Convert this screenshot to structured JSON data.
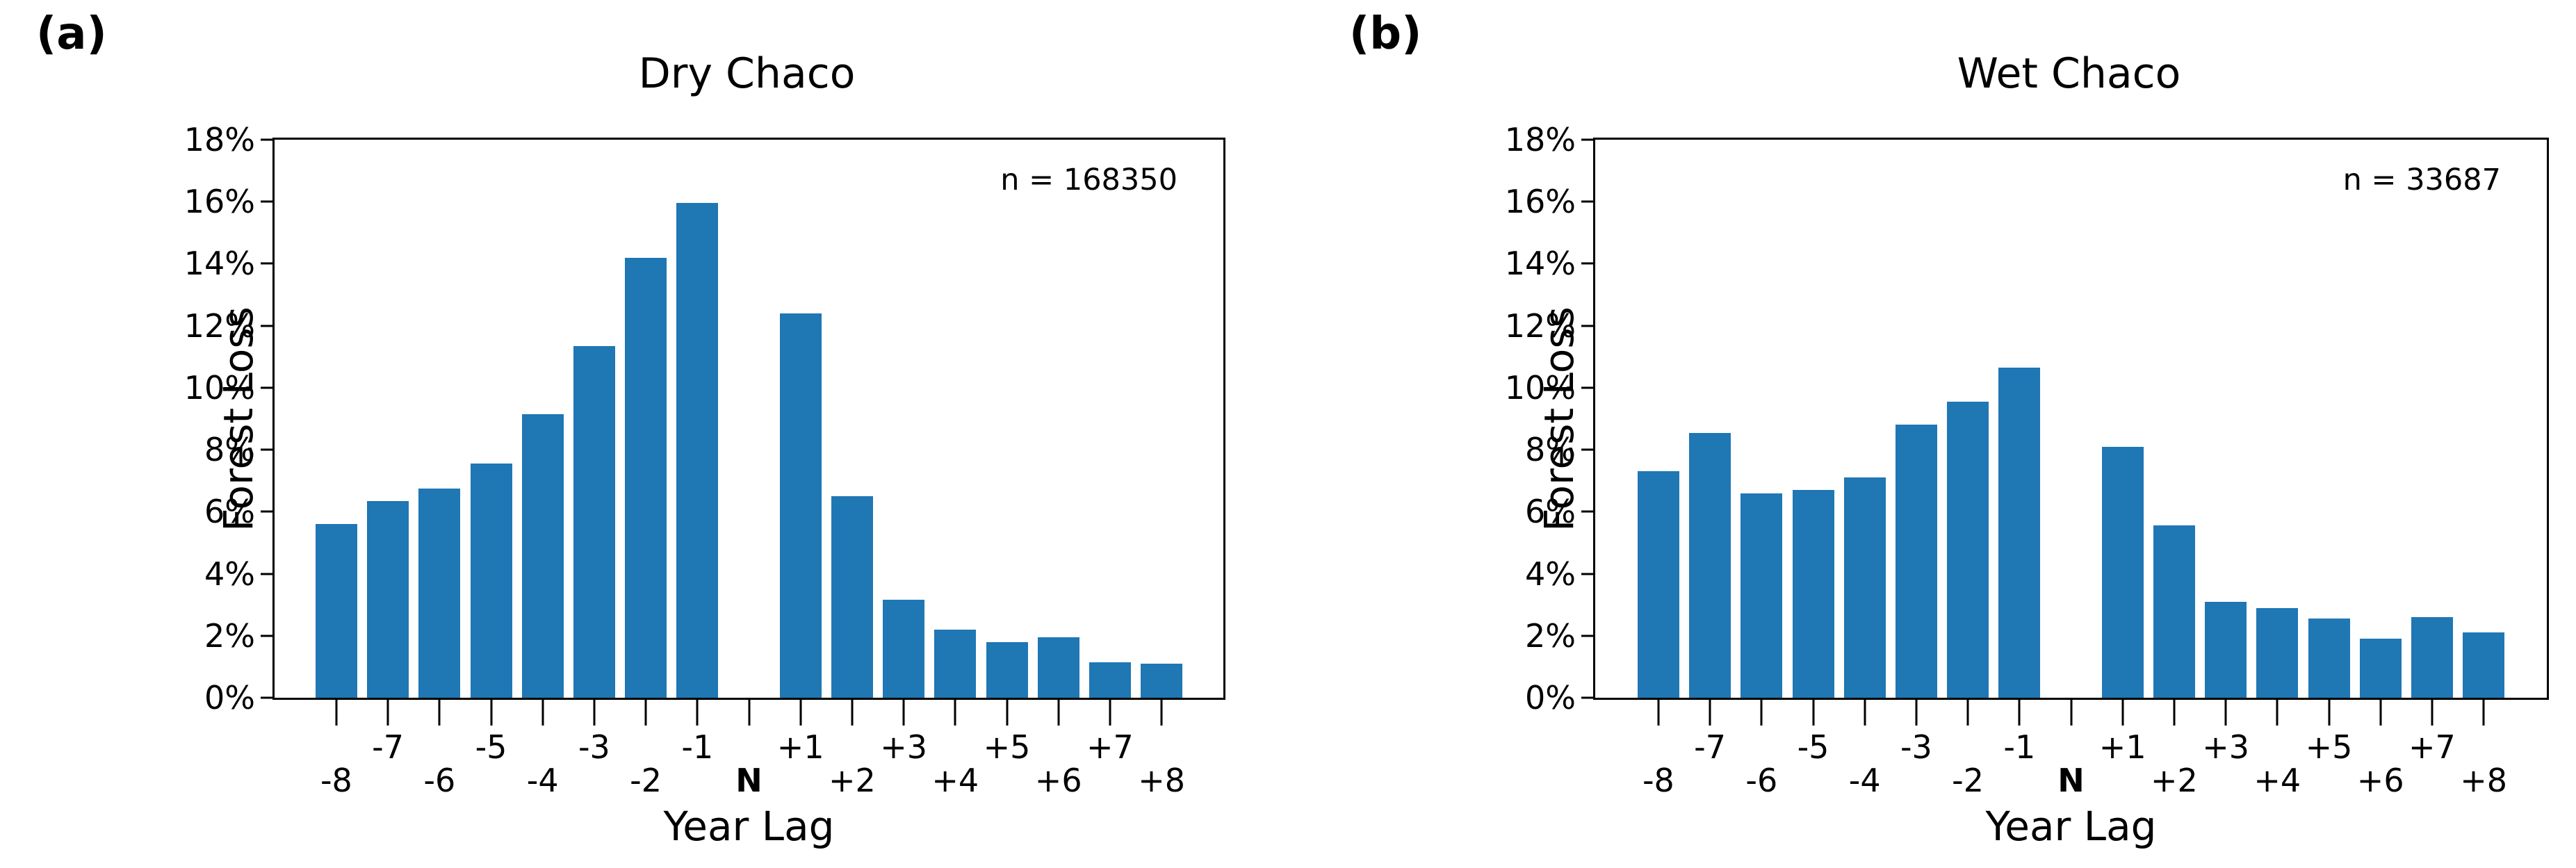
{
  "figure_colors": {
    "bar_fill": "#1f77b4",
    "axis": "#000000",
    "background": "#ffffff"
  },
  "panels": [
    {
      "panel_label": "(a)"
    },
    {
      "panel_label": "(b)"
    }
  ],
  "chart_data": [
    {
      "type": "bar",
      "title": "Dry Chaco",
      "annotation": "n = 168350",
      "xlabel": "Year Lag",
      "ylabel": "Forest Loss",
      "categories": [
        "-8",
        "-7",
        "-6",
        "-5",
        "-4",
        "-3",
        "-2",
        "-1",
        "N",
        "+1",
        "+2",
        "+3",
        "+4",
        "+5",
        "+6",
        "+7",
        "+8"
      ],
      "values": [
        5.6,
        6.35,
        6.75,
        7.55,
        9.15,
        11.35,
        14.2,
        15.95,
        0,
        12.4,
        6.5,
        3.15,
        2.2,
        1.8,
        1.95,
        1.15,
        1.1
      ],
      "ylim": [
        0,
        18
      ],
      "ytick_step": 2,
      "ytick_suffix": "%",
      "grid": false,
      "legend": "none",
      "bold_category": "N",
      "annotation_position": "top-right"
    },
    {
      "type": "bar",
      "title": "Wet Chaco",
      "annotation": "n = 33687",
      "xlabel": "Year Lag",
      "ylabel": "Forest Loss",
      "categories": [
        "-8",
        "-7",
        "-6",
        "-5",
        "-4",
        "-3",
        "-2",
        "-1",
        "N",
        "+1",
        "+2",
        "+3",
        "+4",
        "+5",
        "+6",
        "+7",
        "+8"
      ],
      "values": [
        7.3,
        8.55,
        6.6,
        6.7,
        7.1,
        8.8,
        9.55,
        10.65,
        0,
        8.1,
        5.55,
        3.1,
        2.9,
        2.55,
        1.9,
        2.6,
        2.1
      ],
      "ylim": [
        0,
        18
      ],
      "ytick_step": 2,
      "ytick_suffix": "%",
      "grid": false,
      "legend": "none",
      "bold_category": "N",
      "annotation_position": "top-right"
    }
  ]
}
